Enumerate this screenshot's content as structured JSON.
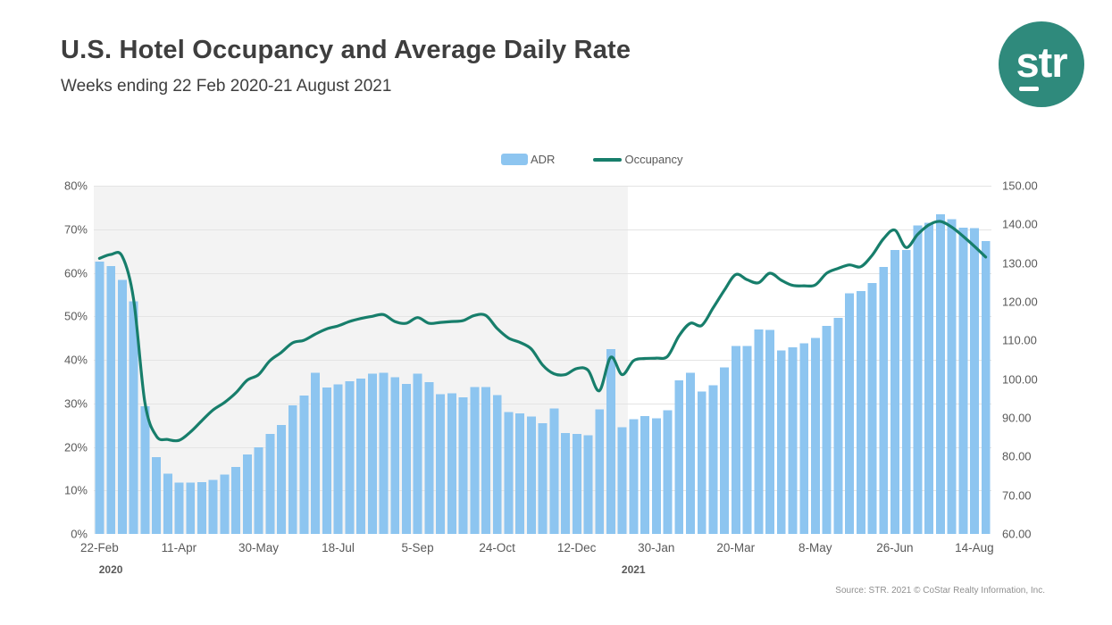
{
  "header": {
    "title": "U.S. Hotel Occupancy and Average Daily Rate",
    "subtitle": "Weeks ending 22 Feb 2020-21 August 2021",
    "logo_text": "str"
  },
  "legend": {
    "adr_label": "ADR",
    "occupancy_label": "Occupancy"
  },
  "footer": {
    "source": "Source: STR. 2021 © CoStar Realty Information, Inc."
  },
  "colors": {
    "adr_bar": "#8DC5F0",
    "occupancy_line": "#177E6B",
    "logo_teal": "#2F8A7C",
    "shaded_region": "#F3F3F3",
    "gridline": "#E4E4E4",
    "axis_text": "#595959",
    "title_text": "#3E3E3E"
  },
  "chart_data": {
    "type": "bar+line combo",
    "title": "U.S. Hotel Occupancy and Average Daily Rate",
    "left_axis": {
      "min": 0,
      "max": 80,
      "ticks": [
        "80%",
        "70%",
        "60%",
        "50%",
        "40%",
        "30%",
        "20%",
        "10%",
        "0%"
      ],
      "series": "Occupancy"
    },
    "right_axis": {
      "min": 60,
      "max": 150,
      "ticks": [
        "150.00",
        "140.00",
        "130.00",
        "120.00",
        "110.00",
        "100.00",
        "90.00",
        "80.00",
        "70.00",
        "60.00"
      ],
      "series": "ADR"
    },
    "x_ticks": [
      {
        "label": "22-Feb",
        "index": 0
      },
      {
        "label": "11-Apr",
        "index": 7
      },
      {
        "label": "30-May",
        "index": 14
      },
      {
        "label": "18-Jul",
        "index": 21
      },
      {
        "label": "5-Sep",
        "index": 28
      },
      {
        "label": "24-Oct",
        "index": 35
      },
      {
        "label": "12-Dec",
        "index": 42
      },
      {
        "label": "30-Jan",
        "index": 49
      },
      {
        "label": "20-Mar",
        "index": 56
      },
      {
        "label": "8-May",
        "index": 63
      },
      {
        "label": "26-Jun",
        "index": 70
      },
      {
        "label": "14-Aug",
        "index": 77
      }
    ],
    "year_labels": [
      {
        "text": "2020",
        "index": 1
      },
      {
        "text": "2021",
        "index": 47
      }
    ],
    "shaded_region": {
      "start_index": 0,
      "end_index": 47,
      "meaning": "2020 weeks"
    },
    "grid": "horizontal only",
    "legend_position": "top-center",
    "series": [
      {
        "name": "ADR",
        "type": "bar",
        "axis": "right",
        "values": [
          130.4,
          129.2,
          125.7,
          120.1,
          93.0,
          79.9,
          75.6,
          73.3,
          73.3,
          73.4,
          74.0,
          75.3,
          77.3,
          80.5,
          82.4,
          85.9,
          88.1,
          93.2,
          95.8,
          101.6,
          97.8,
          98.7,
          99.5,
          100.2,
          101.4,
          101.6,
          100.5,
          98.8,
          101.4,
          99.2,
          96.1,
          96.3,
          95.3,
          98.0,
          98.0,
          95.9,
          91.5,
          91.2,
          90.3,
          88.6,
          92.4,
          86.1,
          85.9,
          85.5,
          92.2,
          107.8,
          87.6,
          89.7,
          90.5,
          89.9,
          92.0,
          99.7,
          101.6,
          96.8,
          98.4,
          103.0,
          108.6,
          108.6,
          112.9,
          112.7,
          107.4,
          108.2,
          109.3,
          110.7,
          113.8,
          115.8,
          122.2,
          122.8,
          124.9,
          129.0,
          133.4,
          133.4,
          139.7,
          140.4,
          142.6,
          141.3,
          139.1,
          139.0,
          135.7
        ]
      },
      {
        "name": "Occupancy",
        "type": "line",
        "axis": "left",
        "values": [
          63.3,
          64.2,
          63.8,
          54.0,
          30.2,
          22.5,
          21.7,
          21.5,
          23.4,
          26.0,
          28.5,
          30.2,
          32.4,
          35.3,
          36.6,
          39.8,
          41.7,
          43.9,
          44.5,
          45.9,
          47.1,
          47.8,
          48.8,
          49.5,
          50.0,
          50.4,
          48.8,
          48.4,
          49.7,
          48.4,
          48.6,
          48.8,
          49.0,
          50.2,
          50.2,
          47.2,
          45.0,
          44.0,
          42.5,
          38.8,
          36.8,
          36.6,
          38.0,
          37.6,
          32.9,
          40.6,
          36.6,
          39.8,
          40.3,
          40.4,
          40.8,
          45.5,
          48.4,
          47.9,
          51.9,
          56.0,
          59.6,
          58.4,
          57.7,
          59.9,
          58.3,
          57.1,
          57.0,
          57.2,
          59.9,
          61.0,
          61.8,
          61.4,
          64.0,
          67.8,
          69.8,
          65.8,
          68.8,
          71.0,
          71.8,
          70.5,
          68.4,
          66.1,
          63.6
        ]
      }
    ]
  }
}
